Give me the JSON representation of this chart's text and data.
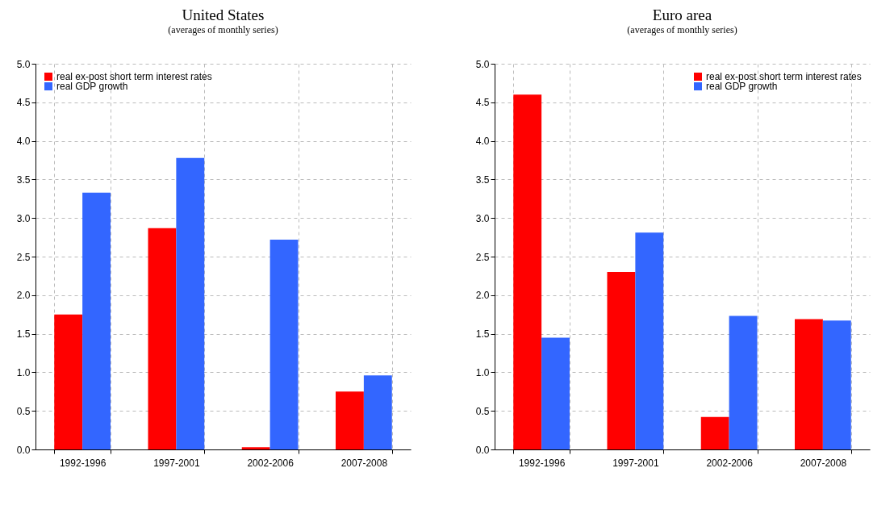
{
  "chart_data": [
    {
      "type": "bar",
      "title": "United States",
      "subtitle": "(averages of monthly series)",
      "categories": [
        "1992-1996",
        "1997-2001",
        "2002-2006",
        "2007-2008"
      ],
      "series": [
        {
          "name": "real ex-post short term interest rates",
          "color": "#ff0000",
          "values": [
            1.75,
            2.87,
            0.03,
            0.75
          ]
        },
        {
          "name": "real GDP growth",
          "color": "#3366ff",
          "values": [
            3.33,
            3.78,
            2.72,
            0.96
          ]
        }
      ],
      "ylim": [
        0,
        5
      ],
      "yticks": [
        {
          "value": 0,
          "label": "0.0"
        },
        {
          "value": 0.5,
          "label": "0.5"
        },
        {
          "value": 1,
          "label": "1.0"
        },
        {
          "value": 1.5,
          "label": "1.5"
        },
        {
          "value": 2,
          "label": "2.0"
        },
        {
          "value": 2.5,
          "label": "2.5"
        },
        {
          "value": 3,
          "label": "3.0"
        },
        {
          "value": 3.5,
          "label": "3.5"
        },
        {
          "value": 4,
          "label": "4.0"
        },
        {
          "value": 4.5,
          "label": "4.5"
        },
        {
          "value": 5,
          "label": "5.0"
        }
      ],
      "grid": true,
      "legend": "top left"
    },
    {
      "type": "bar",
      "title": "Euro area",
      "subtitle": "(averages of monthly series)",
      "categories": [
        "1992-1996",
        "1997-2001",
        "2002-2006",
        "2007-2008"
      ],
      "series": [
        {
          "name": "real ex-post short term interest rates",
          "color": "#ff0000",
          "values": [
            4.6,
            2.3,
            0.42,
            1.69
          ]
        },
        {
          "name": "real GDP growth",
          "color": "#3366ff",
          "values": [
            1.45,
            2.81,
            1.73,
            1.67
          ]
        }
      ],
      "ylim": [
        0,
        5
      ],
      "yticks": [
        {
          "value": 0,
          "label": "0.0"
        },
        {
          "value": 0.5,
          "label": "0.5"
        },
        {
          "value": 1,
          "label": "1.0"
        },
        {
          "value": 1.5,
          "label": "1.5"
        },
        {
          "value": 2,
          "label": "2.0"
        },
        {
          "value": 2.5,
          "label": "2.5"
        },
        {
          "value": 3,
          "label": "3.0"
        },
        {
          "value": 3.5,
          "label": "3.5"
        },
        {
          "value": 4,
          "label": "4.0"
        },
        {
          "value": 4.5,
          "label": "4.5"
        },
        {
          "value": 5,
          "label": "5.0"
        }
      ],
      "grid": true,
      "legend": "top right"
    }
  ]
}
